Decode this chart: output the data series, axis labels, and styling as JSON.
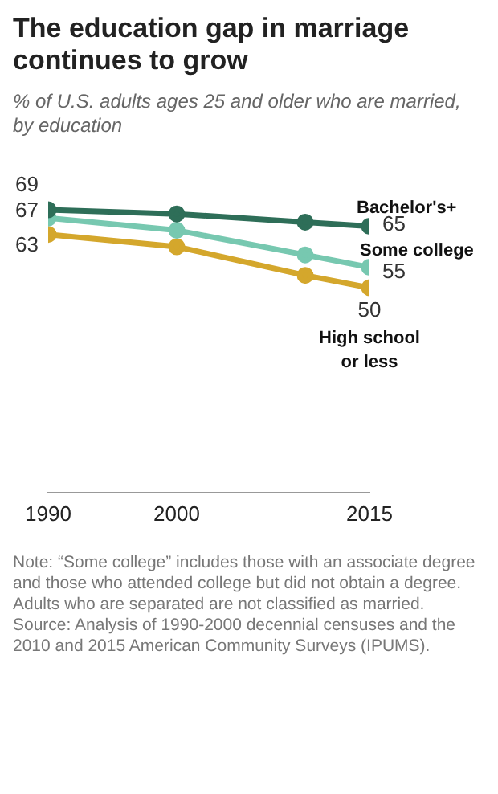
{
  "chart_data": {
    "type": "line",
    "title": "The education gap in marriage continues to grow",
    "subtitle": "% of U.S. adults ages 25 and older who are married, by education",
    "x": [
      1990,
      2000,
      2010,
      2015
    ],
    "series": [
      {
        "name": "Bachelor's+",
        "color": "#2e6e58",
        "values": [
          69,
          68,
          66,
          65
        ],
        "value_labels": [
          "69",
          null,
          null,
          "65"
        ]
      },
      {
        "name": "Some college",
        "color": "#77c8b0",
        "values": [
          67,
          64,
          58,
          55
        ],
        "value_labels": [
          "67",
          null,
          null,
          "55"
        ]
      },
      {
        "name": "High school or less",
        "color": "#d4a72c",
        "values": [
          63,
          60,
          53,
          50
        ],
        "value_labels": [
          "63",
          null,
          null,
          "50"
        ]
      }
    ],
    "xlim": [
      1990,
      2015
    ],
    "xticks": [
      1990,
      2000,
      2015
    ],
    "tick_labels": "x",
    "grid": false,
    "legend": false,
    "marker": "circle",
    "line_style": "solid",
    "annotations": [
      "Note: “Some college” includes those with an associate degree and those who attended college but did not obtain a degree. Adults who are separated are not classified as married.",
      "Source: Analysis of 1990-2000 decennial censuses and the 2010 and 2015 American Community Surveys (IPUMS)."
    ]
  }
}
